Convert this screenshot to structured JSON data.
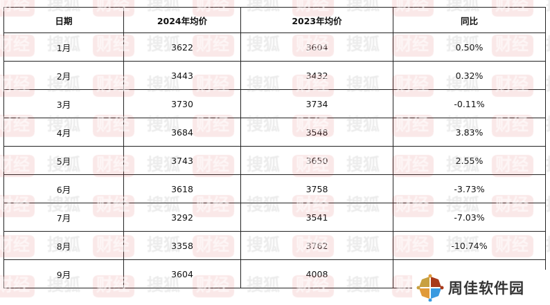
{
  "table": {
    "headers": [
      "日期",
      "2024年均价",
      "2023年均价",
      "同比"
    ],
    "rows": [
      [
        "1月",
        "3622",
        "3604",
        "0.50%"
      ],
      [
        "2月",
        "3443",
        "3432",
        "0.32%"
      ],
      [
        "3月",
        "3730",
        "3734",
        "-0.11%"
      ],
      [
        "4月",
        "3684",
        "3548",
        "3.83%"
      ],
      [
        "5月",
        "3743",
        "3650",
        "2.55%"
      ],
      [
        "6月",
        "3618",
        "3758",
        "-3.73%"
      ],
      [
        "7月",
        "3292",
        "3541",
        "-7.03%"
      ],
      [
        "8月",
        "3358",
        "3762",
        "-10.74%"
      ],
      [
        "9月",
        "3604",
        "4008",
        ""
      ]
    ]
  },
  "watermark": {
    "text_a": "搜狐",
    "text_b": "财经"
  },
  "logo": {
    "text": "周佳软件园",
    "colors": [
      "#c8a040",
      "#a83a1a",
      "#e09a3a",
      "#3a9ae0"
    ]
  }
}
